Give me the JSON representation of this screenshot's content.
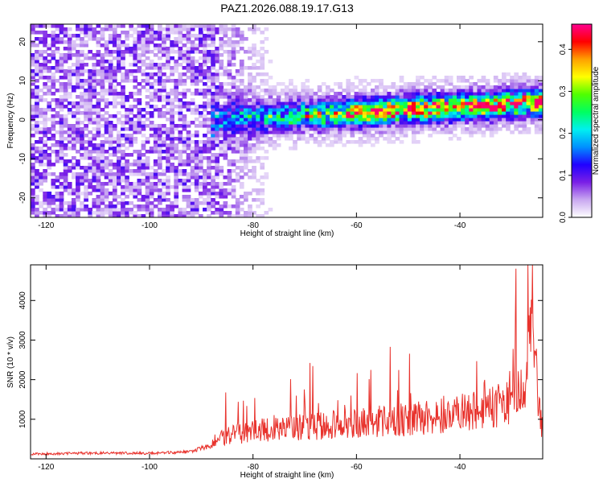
{
  "chart_data": [
    {
      "type": "heatmap",
      "title": "PAZ1.2026.088.19.17.G13",
      "xlabel": "Height of straight line (km)",
      "ylabel": "Frequency (Hz)",
      "xlim": [
        -123,
        -24
      ],
      "ylim": [
        -25,
        24.5
      ],
      "xticks": [
        -120,
        -100,
        -80,
        -60,
        -40
      ],
      "xtick_labels": [
        "-120",
        "-100",
        "-80",
        "-60",
        "-40"
      ],
      "yticks": [
        -20,
        -10,
        0,
        10,
        20
      ],
      "ytick_labels": [
        "-20",
        "-10",
        "0",
        "10",
        "20"
      ],
      "colorbar": {
        "label": "Normalized spectral amplitude",
        "range": [
          0,
          0.46
        ],
        "ticks": [
          0,
          0.1,
          0.2,
          0.3,
          0.4
        ],
        "tick_labels": [
          "0.0",
          "0.1",
          "0.2",
          "0.3",
          "0.4"
        ],
        "colors": [
          "#ffffff",
          "#c9a8f0",
          "#7a1fe6",
          "#2000ff",
          "#0090ff",
          "#00f0f0",
          "#00ff60",
          "#50ff00",
          "#ffff00",
          "#ffa000",
          "#ff0000",
          "#ff0090"
        ]
      },
      "features": {
        "noise_region_x": [
          -123,
          -88
        ],
        "noise_level": 0.06,
        "signal_center_hz_at_xmin": -2.5,
        "signal_center_hz_at_xmax": 4.5,
        "signal_start_x": -88,
        "signal_peak_amplitude": 0.45
      },
      "grid": false
    },
    {
      "type": "line",
      "xlabel": "Height of straight line (km)",
      "ylabel": "SNR (10 * v/v)",
      "xlim": [
        -123,
        -24
      ],
      "ylim": [
        0,
        4900
      ],
      "xticks": [
        -120,
        -100,
        -80,
        -60,
        -40
      ],
      "xtick_labels": [
        "-120",
        "-100",
        "-80",
        "-60",
        "-40"
      ],
      "yticks": [
        1000,
        2000,
        3000,
        4000
      ],
      "ytick_labels": [
        "1000",
        "2000",
        "3000",
        "4000"
      ],
      "series": [
        {
          "name": "SNR",
          "color": "#e8322c",
          "x": [
            -123,
            -110,
            -100,
            -92,
            -88,
            -85,
            -80,
            -75,
            -70,
            -65,
            -60,
            -55,
            -50,
            -45,
            -40,
            -35,
            -30,
            -28,
            -27,
            -26,
            -25,
            -24
          ],
          "y": [
            120,
            150,
            140,
            180,
            350,
            600,
            700,
            750,
            800,
            850,
            900,
            950,
            1000,
            1050,
            1150,
            1250,
            1450,
            1700,
            2600,
            4900,
            1500,
            700
          ]
        }
      ],
      "grid": false
    }
  ]
}
